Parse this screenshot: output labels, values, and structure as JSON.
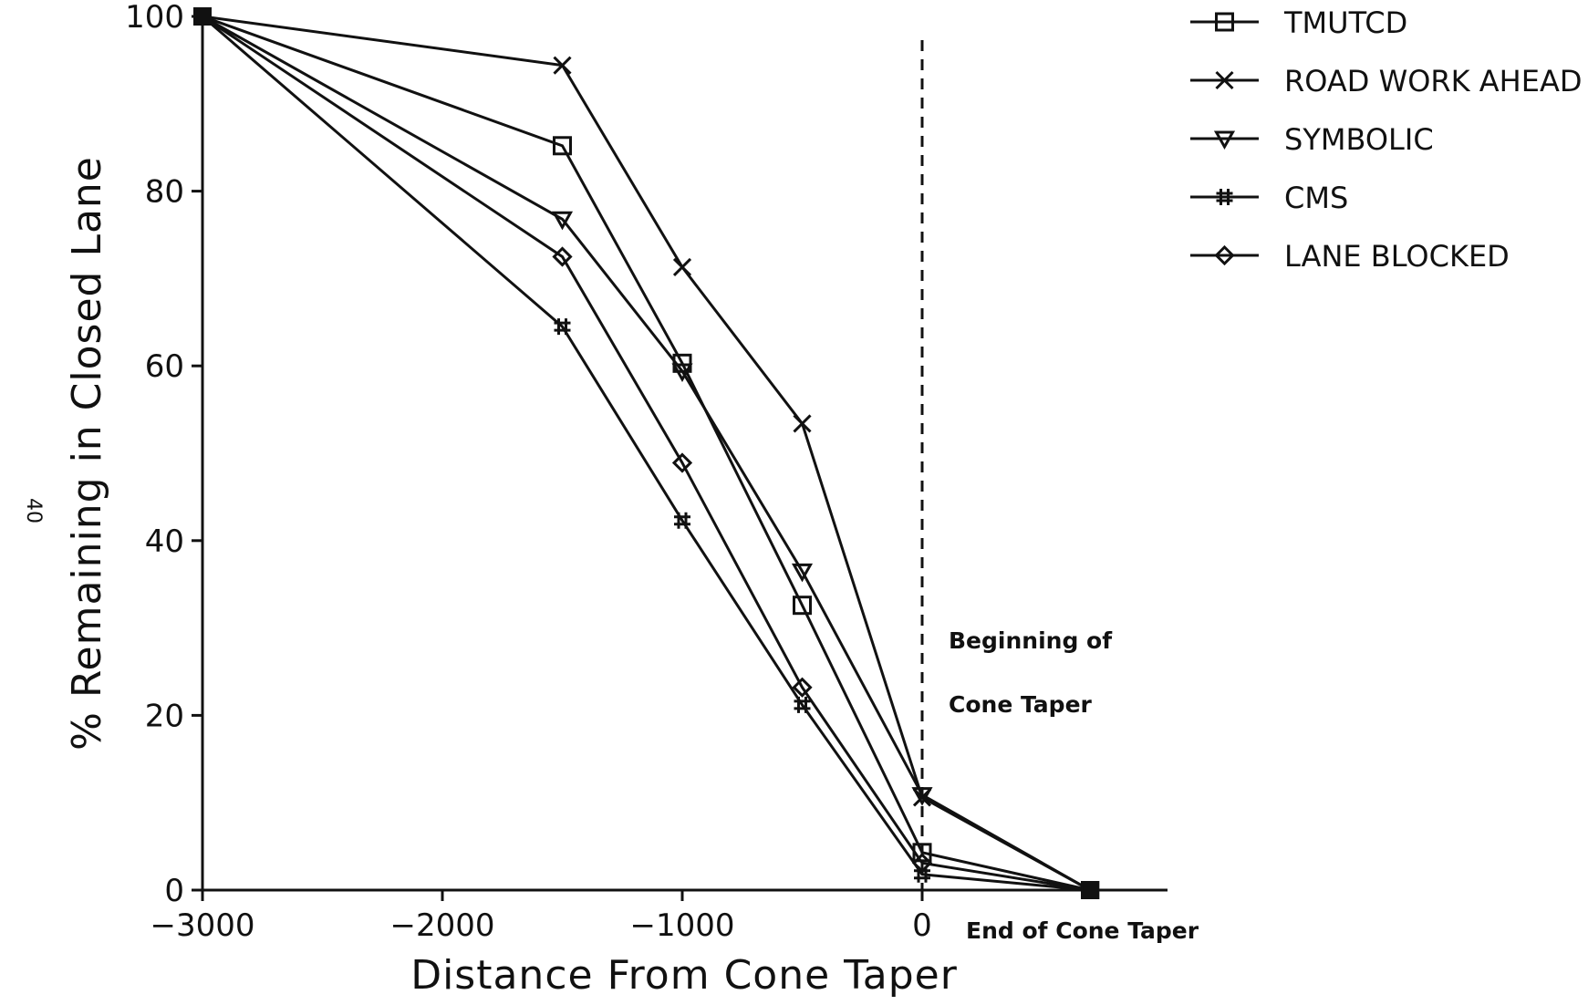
{
  "page_number": "40",
  "chart_data": {
    "type": "line",
    "xlabel": "Distance From Cone Taper",
    "ylabel": "% Remaining in Closed Lane",
    "xlim": [
      -3000,
      700
    ],
    "ylim": [
      0,
      100
    ],
    "x_ticks": [
      -3000,
      -2000,
      -1000,
      0
    ],
    "x_tick_labels": [
      "−3000",
      "−2000",
      "−1000",
      "0"
    ],
    "y_ticks": [
      0,
      20,
      40,
      60,
      80,
      100
    ],
    "y_tick_labels": [
      "0",
      "20",
      "40",
      "60",
      "80",
      "100"
    ],
    "legend_position": "top-right, outside plot",
    "series": [
      {
        "name": "TMUTCD",
        "marker": "square",
        "x": [
          -3000,
          -1500,
          -1000,
          -500,
          0,
          700
        ],
        "values": [
          100,
          85.2,
          60.3,
          32.6,
          4.3,
          0
        ]
      },
      {
        "name": "ROAD WORK AHEAD",
        "marker": "x",
        "x": [
          -3000,
          -1500,
          -1000,
          -500,
          0,
          700
        ],
        "values": [
          100,
          94.4,
          71.3,
          53.4,
          10.6,
          0
        ]
      },
      {
        "name": "SYMBOLIC",
        "marker": "triangle-down",
        "x": [
          -3000,
          -1500,
          -1000,
          -500,
          0,
          700
        ],
        "values": [
          100,
          76.8,
          59.4,
          36.5,
          10.9,
          0
        ]
      },
      {
        "name": "CMS",
        "marker": "hash",
        "x": [
          -3000,
          -1500,
          -1000,
          -500,
          0,
          700
        ],
        "values": [
          100,
          64.5,
          42.3,
          21.2,
          1.8,
          0
        ]
      },
      {
        "name": "LANE BLOCKED",
        "marker": "diamond",
        "x": [
          -3000,
          -1500,
          -1000,
          -500,
          0,
          700
        ],
        "values": [
          100,
          72.5,
          48.9,
          23.2,
          3.1,
          0
        ]
      }
    ],
    "annotations": [
      {
        "text": "Beginning of",
        "x": 0
      },
      {
        "text": "Cone Taper",
        "x": 0
      },
      {
        "text": "End of Cone Taper",
        "x": 700
      }
    ],
    "vertical_reference_line": {
      "x": 0,
      "style": "dashed"
    },
    "grid": false
  }
}
